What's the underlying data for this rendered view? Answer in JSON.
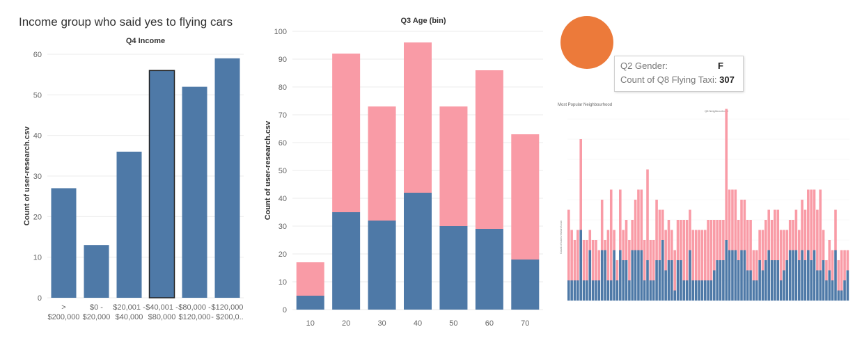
{
  "dashboard": {
    "title": "Income group who said yes to flying cars"
  },
  "colors": {
    "blue": "#4e79a7",
    "pink": "#f99ba6",
    "orange": "#ec7a3a"
  },
  "chart_data": [
    {
      "type": "bar",
      "title": "Q4 Income",
      "ylabel": "Count of user-research.csv",
      "xlabel": "",
      "ylim": [
        0,
        60
      ],
      "yticks": [
        0,
        10,
        20,
        30,
        40,
        50,
        60
      ],
      "categories": [
        [
          "> ",
          "$200,000"
        ],
        [
          "$0 -",
          "$20,000"
        ],
        [
          "$20,001 -",
          "$40,000"
        ],
        [
          "$40,001 -",
          "$80,000"
        ],
        [
          "$80,000 -",
          "$120,000"
        ],
        [
          "$120,000",
          "- $200,0.."
        ]
      ],
      "values": [
        27,
        13,
        36,
        56,
        52,
        59
      ],
      "highlighted_index": 3,
      "grid": "horizontal"
    },
    {
      "type": "bar",
      "stacked": true,
      "title": "Q3 Age (bin)",
      "ylabel": "Count of user-research.csv",
      "xlabel": "",
      "ylim": [
        0,
        100
      ],
      "yticks": [
        0,
        10,
        20,
        30,
        40,
        50,
        60,
        70,
        80,
        90,
        100
      ],
      "categories": [
        "10",
        "20",
        "30",
        "40",
        "50",
        "60",
        "70"
      ],
      "series": [
        {
          "values": [
            5,
            35,
            32,
            42,
            30,
            29,
            18
          ],
          "color": "#4e79a7"
        },
        {
          "values": [
            12,
            57,
            41,
            54,
            43,
            57,
            45
          ],
          "color": "#f99ba6"
        }
      ],
      "grid": "horizontal"
    },
    {
      "type": "bar",
      "stacked": true,
      "title": "Q8 Neighbourhood",
      "ylabel": "Count of user-research.csv",
      "series": [
        {
          "values": [
            2,
            2,
            2,
            2,
            7,
            2,
            2,
            5,
            2,
            2,
            2,
            5,
            5,
            2,
            2,
            5,
            2,
            5,
            4,
            4,
            2,
            5,
            5,
            5,
            5,
            2,
            4,
            2,
            2,
            4,
            4,
            6,
            3,
            4,
            4,
            1,
            4,
            4,
            2,
            2,
            5,
            2,
            2,
            2,
            2,
            2,
            2,
            2,
            3,
            4,
            4,
            4,
            6,
            5,
            5,
            5,
            4,
            5,
            5,
            3,
            3,
            2,
            2,
            4,
            3,
            4,
            5,
            4,
            4,
            4,
            2,
            3,
            4,
            5,
            5,
            5,
            4,
            5,
            4,
            5,
            4,
            5,
            3,
            3,
            4,
            2,
            3,
            2,
            5,
            1,
            1,
            2,
            3
          ],
          "color": "#4e79a7"
        },
        {
          "values": [
            7,
            5,
            4,
            5,
            9,
            4,
            4,
            2,
            4,
            4,
            3,
            5,
            1,
            5,
            9,
            2,
            2,
            6,
            3,
            4,
            4,
            3,
            5,
            6,
            6,
            4,
            9,
            4,
            4,
            6,
            5,
            3,
            4,
            4,
            3,
            4,
            4,
            4,
            6,
            6,
            4,
            5,
            5,
            5,
            5,
            5,
            6,
            6,
            5,
            4,
            4,
            4,
            13,
            6,
            6,
            6,
            4,
            5,
            5,
            5,
            5,
            3,
            3,
            3,
            4,
            4,
            4,
            4,
            5,
            5,
            5,
            4,
            3,
            3,
            3,
            4,
            3,
            5,
            5,
            6,
            7,
            6,
            6,
            8,
            3,
            2,
            3,
            3,
            4,
            3,
            4,
            3,
            2
          ],
          "color": "#f99ba6"
        }
      ]
    }
  ],
  "tooltip": {
    "rows": [
      {
        "label": "Q2 Gender:",
        "value": "F"
      },
      {
        "label": "Count of Q8 Flying Taxi:",
        "value": "307"
      }
    ]
  },
  "thumbnail": {
    "title": "Most Popular Neighbourhood"
  }
}
